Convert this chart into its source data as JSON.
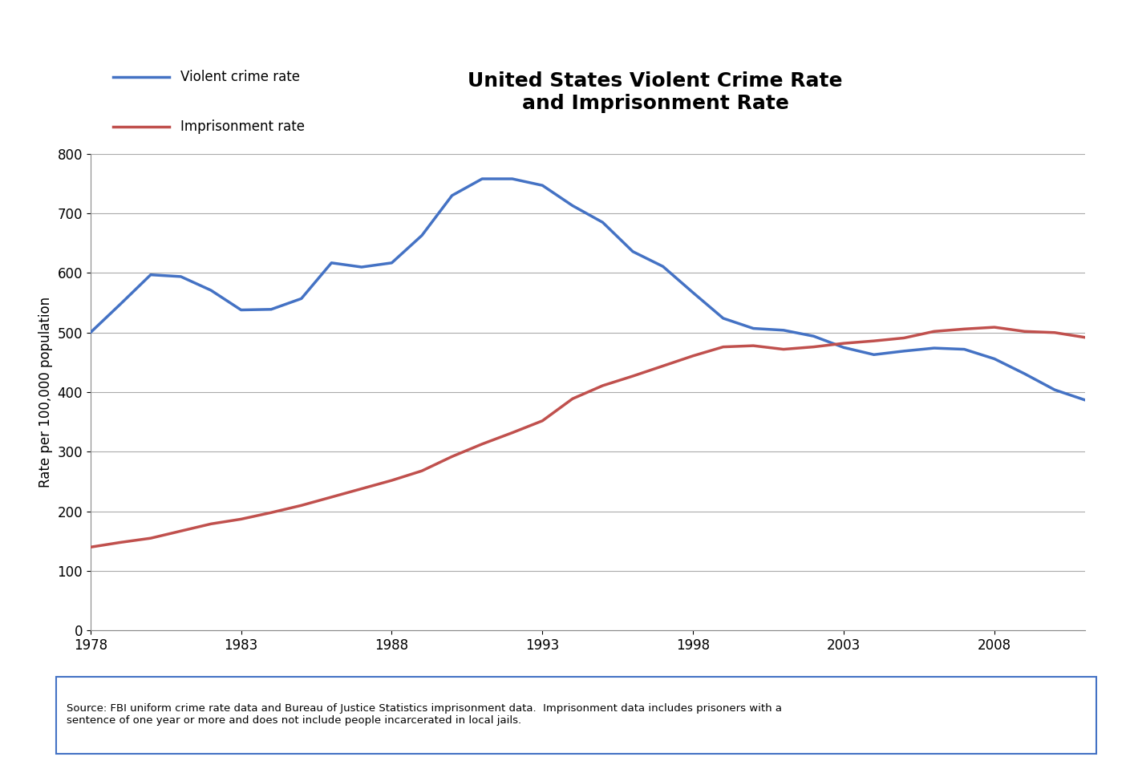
{
  "title": "United States Violent Crime Rate\nand Imprisonment Rate",
  "ylabel": "Rate per 100,000 population",
  "xlabel": "",
  "source_text": "Source: FBI uniform crime rate data and Bureau of Justice Statistics imprisonment data.  Imprisonment data includes prisoners with a\nsentence of one year or more and does not include people incarcerated in local jails.",
  "xlim": [
    1978,
    2011
  ],
  "ylim": [
    0,
    800
  ],
  "yticks": [
    0,
    100,
    200,
    300,
    400,
    500,
    600,
    700,
    800
  ],
  "xticks": [
    1978,
    1983,
    1988,
    1993,
    1998,
    2003,
    2008
  ],
  "violent_crime": {
    "years": [
      1978,
      1979,
      1980,
      1981,
      1982,
      1983,
      1984,
      1985,
      1986,
      1987,
      1988,
      1989,
      1990,
      1991,
      1992,
      1993,
      1994,
      1995,
      1996,
      1997,
      1998,
      1999,
      2000,
      2001,
      2002,
      2003,
      2004,
      2005,
      2006,
      2007,
      2008,
      2009,
      2010,
      2011
    ],
    "values": [
      500,
      548,
      597,
      594,
      571,
      538,
      539,
      557,
      617,
      610,
      617,
      663,
      730,
      758,
      758,
      747,
      713,
      685,
      636,
      611,
      567,
      524,
      507,
      504,
      494,
      475,
      463,
      469,
      474,
      472,
      456,
      431,
      404,
      387
    ],
    "color": "#4472C4",
    "linewidth": 2.5
  },
  "imprisonment": {
    "years": [
      1978,
      1979,
      1980,
      1981,
      1982,
      1983,
      1984,
      1985,
      1986,
      1987,
      1988,
      1989,
      1990,
      1991,
      1992,
      1993,
      1994,
      1995,
      1996,
      1997,
      1998,
      1999,
      2000,
      2001,
      2002,
      2003,
      2004,
      2005,
      2006,
      2007,
      2008,
      2009,
      2010,
      2011
    ],
    "values": [
      140,
      148,
      155,
      167,
      179,
      187,
      198,
      210,
      224,
      238,
      252,
      268,
      292,
      313,
      332,
      352,
      389,
      411,
      427,
      444,
      461,
      476,
      478,
      472,
      476,
      482,
      486,
      491,
      502,
      506,
      509,
      502,
      500,
      492
    ],
    "color": "#C0504D",
    "linewidth": 2.5
  },
  "legend_items": [
    {
      "label": "Violent crime rate",
      "color": "#4472C4"
    },
    {
      "label": "Imprisonment rate",
      "color": "#C0504D"
    }
  ],
  "background_color": "#FFFFFF",
  "plot_bg_color": "#FFFFFF",
  "grid_color": "#AAAAAA",
  "title_fontsize": 18,
  "axis_label_fontsize": 12,
  "tick_fontsize": 12,
  "legend_fontsize": 12
}
